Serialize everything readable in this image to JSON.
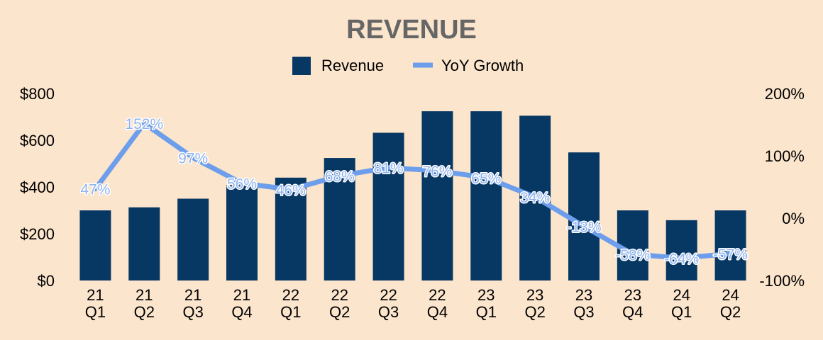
{
  "chart_data": {
    "type": "bar",
    "title": "REVENUE",
    "categories": [
      "21 Q1",
      "21 Q2",
      "21 Q3",
      "21 Q4",
      "22 Q1",
      "22 Q2",
      "22 Q3",
      "22 Q4",
      "23 Q1",
      "23 Q2",
      "23 Q3",
      "23 Q4",
      "24 Q1",
      "24 Q2"
    ],
    "series": [
      {
        "name": "Revenue",
        "type": "bar",
        "axis": "left",
        "color": "#073763",
        "values": [
          300,
          313,
          350,
          408,
          440,
          524,
          632,
          724,
          724,
          705,
          548,
          300,
          258,
          300
        ]
      },
      {
        "name": "YoY Growth",
        "type": "line",
        "axis": "right",
        "color": "#6d9eeb",
        "values": [
          47,
          152,
          97,
          56,
          46,
          68,
          81,
          76,
          65,
          34,
          -13,
          -58,
          -64,
          -57
        ],
        "labels": [
          "47%",
          "152%",
          "97%",
          "56%",
          "46%",
          "68%",
          "81%",
          "76%",
          "65%",
          "34%",
          "-13%",
          "-58%",
          "-64%",
          "-57%"
        ]
      }
    ],
    "y_left": {
      "min": 0,
      "max": 800,
      "ticks": [
        "$0",
        "$200",
        "$400",
        "$600",
        "$800"
      ]
    },
    "y_right": {
      "min": -100,
      "max": 200,
      "ticks": [
        "-100%",
        "0%",
        "100%",
        "200%"
      ]
    },
    "legend": "top-center",
    "grid": false,
    "background": "#fce5cd"
  }
}
